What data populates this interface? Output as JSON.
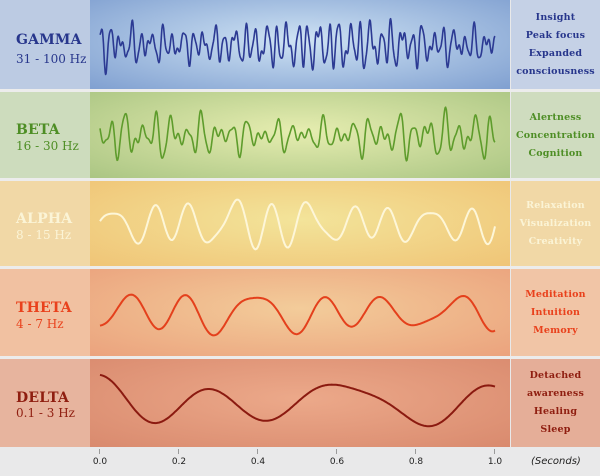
{
  "bands": [
    {
      "name": "GAMMA",
      "range": "31 - 100 Hz",
      "effects": [
        "Insight",
        "Peak focus",
        "Expanded",
        "consciousness"
      ],
      "label_color": "#27368c",
      "effect_color": "#27368c",
      "wave_color": "#2c3a93",
      "label_bg": "#bccbe3",
      "effect_bg": "#c5d1e6",
      "wave_bg_center": "#cfe3f4",
      "wave_bg_edge": "#7f9fd0",
      "wave": {
        "cycles": 38,
        "amplitude": 0.85,
        "seed": 3
      }
    },
    {
      "name": "BETA",
      "range": "16 - 30 Hz",
      "effects": [
        "Alertness",
        "Concentration",
        "Cognition"
      ],
      "label_color": "#4e8e25",
      "effect_color": "#4e8e25",
      "wave_color": "#5e9c2c",
      "label_bg": "#cddcbd",
      "effect_bg": "#cfdcbf",
      "wave_bg_center": "#e6edb0",
      "wave_bg_edge": "#aac583",
      "wave": {
        "cycles": 26,
        "amplitude": 0.75,
        "seed": 7
      }
    },
    {
      "name": "ALPHA",
      "range": "8 - 15 Hz",
      "effects": [
        "Relaxation",
        "Visualization",
        "Creativity"
      ],
      "label_color": "#fbf4d6",
      "effect_color": "#fbf4d6",
      "wave_color": "#fdf6d8",
      "label_bg": "#f1d8a6",
      "effect_bg": "#f1d8a6",
      "wave_bg_center": "#f3e49a",
      "wave_bg_edge": "#f0c476",
      "wave": {
        "cycles": 10,
        "amplitude": 0.9,
        "seed": 11
      }
    },
    {
      "name": "THETA",
      "range": "4 - 7 Hz",
      "effects": [
        "Meditation",
        "Intuition",
        "Memory"
      ],
      "label_color": "#e9411c",
      "effect_color": "#e9411c",
      "wave_color": "#e4401c",
      "label_bg": "#f1c1a1",
      "effect_bg": "#f1c5a6",
      "wave_bg_center": "#f3cc9a",
      "wave_bg_edge": "#eba27d",
      "wave": {
        "cycles": 6,
        "amplitude": 0.8,
        "seed": 5
      }
    },
    {
      "name": "DELTA",
      "range": "0.1 - 3 Hz",
      "effects": [
        "Detached",
        "awareness",
        "Healing",
        "Sleep"
      ],
      "label_color": "#8f1e10",
      "effect_color": "#8f1e10",
      "wave_color": "#8b1a10",
      "label_bg": "#e7b49e",
      "effect_bg": "#e5ae98",
      "wave_bg_center": "#eca98a",
      "wave_bg_edge": "#d98a6e",
      "wave": {
        "cycles": 3,
        "amplitude": 0.9,
        "seed": 2
      }
    }
  ],
  "axis": {
    "ticks": [
      "0.0",
      "0.2",
      "0.4",
      "0.6",
      "0.8",
      "1.0"
    ],
    "unit": "(Seconds)"
  }
}
